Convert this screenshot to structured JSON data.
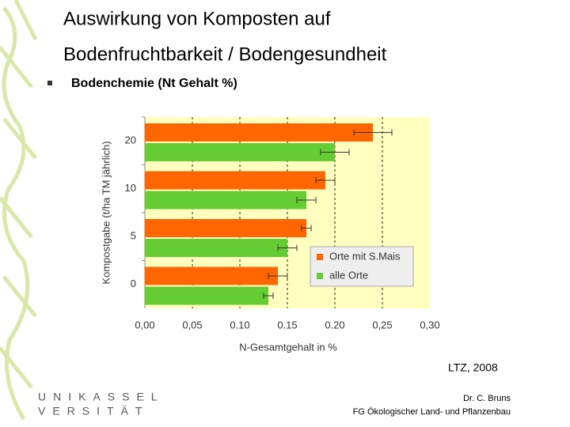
{
  "slide": {
    "title_lines": [
      "Auswirkung von Komposten auf",
      "Bodenfruchtbarkeit  / Bodengesundheit"
    ],
    "bullet": "Bodenchemie (Nt Gehalt %)",
    "source": "LTZ, 2008",
    "author": "Dr. C. Bruns",
    "department": "FG Ökologischer Land- und Pflanzenbau",
    "logo_lines": [
      "UNIKASSEL",
      "VERSITÄT"
    ]
  },
  "chart_data": {
    "type": "bar",
    "orientation": "horizontal",
    "categories": [
      "20",
      "10",
      "5",
      "0"
    ],
    "series": [
      {
        "name": "Orte mit S.Mais",
        "color": "#ff6600",
        "values": [
          0.24,
          0.19,
          0.17,
          0.14
        ],
        "errors": [
          0.02,
          0.01,
          0.005,
          0.01
        ]
      },
      {
        "name": "alle Orte",
        "color": "#66cc33",
        "values": [
          0.2,
          0.17,
          0.15,
          0.13
        ],
        "errors": [
          0.015,
          0.01,
          0.01,
          0.005
        ]
      }
    ],
    "xlim": [
      0,
      0.3
    ],
    "xticks": [
      {
        "value": 0,
        "label": "0,00"
      },
      {
        "value": 0.05,
        "label": "0,05"
      },
      {
        "value": 0.1,
        "label": "0.10"
      },
      {
        "value": 0.15,
        "label": "0.15"
      },
      {
        "value": 0.2,
        "label": "0.20"
      },
      {
        "value": 0.25,
        "label": "0,25"
      },
      {
        "value": 0.3,
        "label": "0,30"
      }
    ],
    "xlabel": "N-Gesamtgehalt in %",
    "ylabel": "Kompostgabe (t/ha TM jährlich)",
    "grid": true,
    "legend": "lower right"
  }
}
